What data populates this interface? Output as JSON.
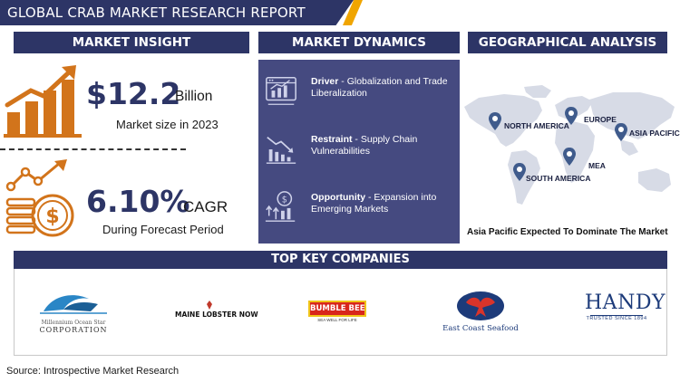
{
  "header": {
    "title": "GLOBAL CRAB MARKET RESEARCH REPORT"
  },
  "sections": {
    "insight": "MARKET INSIGHT",
    "dynamics": "MARKET DYNAMICS",
    "geo": "GEOGRAPHICAL ANALYSIS",
    "companies": "TOP KEY COMPANIES"
  },
  "insight": {
    "market_size_value": "$12.2",
    "market_size_unit": "Billion",
    "market_size_caption": "Market size in 2023",
    "cagr_value": "6.10%",
    "cagr_unit": "CAGR",
    "cagr_caption": "During Forecast Period"
  },
  "dynamics": [
    {
      "label": "Driver",
      "text": " - Globalization and Trade Liberalization",
      "icon": "browser-chart-icon"
    },
    {
      "label": "Restraint",
      "text": " - Supply Chain Vulnerabilities",
      "icon": "down-trend-chart-icon"
    },
    {
      "label": "Opportunity",
      "text": " - Expansion into Emerging Markets",
      "icon": "dollar-growth-icon"
    }
  ],
  "geo": {
    "regions": [
      "NORTH AMERICA",
      "EUROPE",
      "ASIA PACIFIC",
      "MEA",
      "SOUTH AMERICA"
    ],
    "note": "Asia Pacific Expected To Dominate The Market"
  },
  "companies": {
    "millennium_line1": "Millennium Ocean Star",
    "millennium_line2": "CORPORATION",
    "maine": "MAINE LOBSTER NOW",
    "bumble": "BUMBLE BEE",
    "bumble_sub": "SEA WELL FOR LIFE",
    "eastcoast": "East Coast Seafood",
    "handy": "HANDY",
    "handy_sub": "TRUSTED SINCE 1894"
  },
  "source": "Source: Introspective Market Research",
  "colors": {
    "navy": "#2d3566",
    "panel": "#454a80",
    "orange": "#d2741b",
    "gold": "#f0a500"
  }
}
